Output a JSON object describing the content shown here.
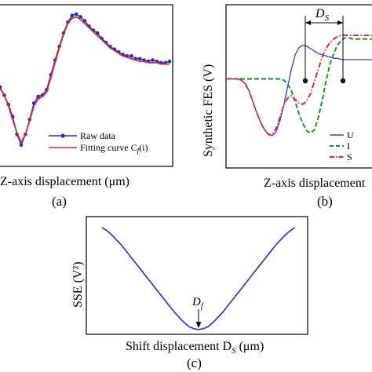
{
  "chart_data": [
    {
      "panel": "(a)",
      "type": "line",
      "xlabel": "Z-axis displacement (μm)",
      "ylabel": "",
      "legend_position": "bottom-right",
      "x": [
        0,
        1,
        2,
        3,
        4,
        5,
        6,
        7,
        8,
        9,
        10,
        11,
        12,
        13,
        14,
        15,
        16,
        17,
        18,
        19,
        20,
        21,
        22,
        23,
        24,
        25,
        26,
        27,
        28,
        29,
        30,
        31,
        32,
        33,
        34,
        35,
        36,
        37,
        38,
        39,
        40
      ],
      "series": [
        {
          "name": "Raw data",
          "color": "#1f2fcf",
          "marker": "circle",
          "values": [
            0.46,
            0.4,
            0.33,
            0.24,
            0.11,
            0.03,
            0.11,
            0.22,
            0.34,
            0.39,
            0.4,
            0.44,
            0.55,
            0.66,
            0.76,
            0.86,
            0.94,
            0.99,
            1.0,
            0.98,
            0.95,
            0.91,
            0.88,
            0.86,
            0.82,
            0.79,
            0.76,
            0.74,
            0.72,
            0.7,
            0.69,
            0.69,
            0.67,
            0.67,
            0.66,
            0.65,
            0.66,
            0.65,
            0.64,
            0.64,
            0.65
          ]
        },
        {
          "name": "Fitting curve C_f(i)",
          "color": "#e5202a",
          "marker": "none",
          "values": [
            0.45,
            0.4,
            0.32,
            0.22,
            0.12,
            0.05,
            0.11,
            0.21,
            0.32,
            0.37,
            0.39,
            0.42,
            0.53,
            0.64,
            0.75,
            0.85,
            0.93,
            0.97,
            0.98,
            0.96,
            0.93,
            0.9,
            0.87,
            0.84,
            0.81,
            0.78,
            0.75,
            0.73,
            0.71,
            0.69,
            0.68,
            0.67,
            0.66,
            0.65,
            0.65,
            0.64,
            0.64,
            0.64,
            0.63,
            0.63,
            0.63
          ]
        }
      ],
      "legend": [
        {
          "text": "Raw data"
        },
        {
          "text": "Fitting curve C",
          "sub": "f",
          "tail": "(i)"
        }
      ]
    },
    {
      "panel": "(b)",
      "type": "line",
      "xlabel": "Z-axis displacement",
      "ylabel": "Synthetic FES (V)",
      "annotation": {
        "text": "D",
        "sub": "S"
      },
      "legend_position": "bottom-right",
      "x": [
        0,
        1,
        2,
        3,
        4,
        5,
        6,
        7,
        8,
        9,
        10,
        11,
        12,
        13,
        14,
        15,
        16,
        17,
        18,
        19,
        20,
        21,
        22,
        23,
        24,
        25,
        26,
        27,
        28,
        29,
        30,
        31,
        32,
        33,
        34,
        35,
        36,
        37,
        38,
        39,
        40
      ],
      "series": [
        {
          "name": "U",
          "color": "#2b3ee0",
          "style": "solid",
          "values": [
            0.62,
            0.62,
            0.62,
            0.62,
            0.61,
            0.58,
            0.52,
            0.43,
            0.34,
            0.26,
            0.2,
            0.16,
            0.15,
            0.18,
            0.27,
            0.4,
            0.55,
            0.7,
            0.82,
            0.88,
            0.9,
            0.89,
            0.87,
            0.85,
            0.83,
            0.82,
            0.81,
            0.8,
            0.79,
            0.79,
            0.78,
            0.78,
            0.78,
            0.78,
            0.78,
            0.78,
            0.78,
            0.78,
            0.78,
            0.78,
            0.78
          ]
        },
        {
          "name": "I",
          "color": "#1e8a23",
          "style": "dashed",
          "values": [
            0.62,
            0.62,
            0.62,
            0.62,
            0.62,
            0.62,
            0.62,
            0.62,
            0.62,
            0.62,
            0.62,
            0.62,
            0.62,
            0.62,
            0.62,
            0.61,
            0.58,
            0.52,
            0.43,
            0.33,
            0.25,
            0.19,
            0.17,
            0.2,
            0.3,
            0.44,
            0.6,
            0.74,
            0.83,
            0.9,
            0.94,
            0.96,
            0.96,
            0.95,
            0.95,
            0.95,
            0.95,
            0.95,
            0.95,
            0.95,
            0.95
          ]
        },
        {
          "name": "S",
          "color": "#e5202a",
          "style": "dashdot",
          "values": [
            0.62,
            0.62,
            0.62,
            0.62,
            0.61,
            0.58,
            0.52,
            0.43,
            0.34,
            0.26,
            0.2,
            0.16,
            0.16,
            0.21,
            0.3,
            0.4,
            0.46,
            0.48,
            0.45,
            0.42,
            0.41,
            0.44,
            0.5,
            0.6,
            0.7,
            0.8,
            0.87,
            0.92,
            0.95,
            0.97,
            0.98,
            0.98,
            0.98,
            0.98,
            0.98,
            0.98,
            0.98,
            0.98,
            0.98,
            0.98,
            0.98
          ]
        }
      ],
      "legend": [
        {
          "text": "U"
        },
        {
          "text": "I"
        },
        {
          "text": "S"
        }
      ]
    },
    {
      "panel": "(c)",
      "type": "line",
      "xlabel": "Shift displacement D",
      "xlabel_sub": "S",
      "xlabel_unit": " (μm)",
      "ylabel": "SSE (V²)",
      "annotation": {
        "text": "D",
        "sub": "f"
      },
      "x": [
        0,
        1,
        2,
        3,
        4,
        5,
        6,
        7,
        8,
        9,
        10,
        11,
        12,
        13,
        14,
        15,
        16,
        17,
        18,
        19,
        20,
        21,
        22,
        23,
        24,
        25,
        26,
        27,
        28,
        29,
        30,
        31,
        32,
        33,
        34,
        35,
        36,
        37,
        38,
        39,
        40
      ],
      "series": [
        {
          "name": "SSE",
          "color": "#1f2fcf",
          "values": [
            1.0,
            0.97,
            0.93,
            0.88,
            0.83,
            0.77,
            0.71,
            0.65,
            0.59,
            0.53,
            0.47,
            0.41,
            0.35,
            0.29,
            0.23,
            0.17,
            0.12,
            0.07,
            0.03,
            0.01,
            0.0,
            0.01,
            0.03,
            0.07,
            0.12,
            0.17,
            0.23,
            0.29,
            0.35,
            0.41,
            0.47,
            0.53,
            0.59,
            0.65,
            0.71,
            0.77,
            0.83,
            0.88,
            0.93,
            0.97,
            1.0
          ]
        }
      ]
    }
  ],
  "labels": {
    "a": "(a)",
    "b": "(b)",
    "c": "(c)"
  }
}
